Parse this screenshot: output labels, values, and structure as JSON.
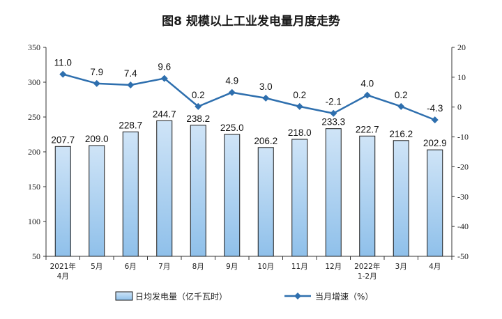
{
  "chart_data": {
    "type": "bar",
    "title": "图8  规模以上工业发电量月度走势",
    "categories": [
      [
        "2021年",
        "4月"
      ],
      [
        "5月"
      ],
      [
        "6月"
      ],
      [
        "7月"
      ],
      [
        "8月"
      ],
      [
        "9月"
      ],
      [
        "10月"
      ],
      [
        "11月"
      ],
      [
        "12月"
      ],
      [
        "2022年",
        "1-2月"
      ],
      [
        "3月"
      ],
      [
        "4月"
      ]
    ],
    "series": [
      {
        "name": "日均发电量（亿千瓦时）",
        "type": "bar",
        "axis": "left",
        "values": [
          207.7,
          209.0,
          228.7,
          244.7,
          238.2,
          225.0,
          206.2,
          218.0,
          233.3,
          222.7,
          216.2,
          202.9
        ],
        "labels": [
          "207.7",
          "209.0",
          "228.7",
          "244.7",
          "238.2",
          "225.0",
          "206.2",
          "218.0",
          "233.3",
          "222.7",
          "216.2",
          "202.9"
        ]
      },
      {
        "name": "当月增速（%）",
        "type": "line",
        "axis": "right",
        "values": [
          11.0,
          7.9,
          7.4,
          9.6,
          0.2,
          4.9,
          3.0,
          0.2,
          -2.1,
          4.0,
          0.2,
          -4.3
        ],
        "labels": [
          "11.0",
          "7.9",
          "7.4",
          "9.6",
          "0.2",
          "4.9",
          "3.0",
          "0.2",
          "-2.1",
          "4.0",
          "0.2",
          "-4.3"
        ]
      }
    ],
    "y_left": {
      "min": 50,
      "max": 350,
      "ticks": [
        50,
        100,
        150,
        200,
        250,
        300,
        350
      ]
    },
    "y_right": {
      "min": -50,
      "max": 20,
      "ticks": [
        -50,
        -40,
        -30,
        -20,
        -10,
        0,
        10,
        20
      ]
    },
    "grid": false,
    "legend_position": "bottom",
    "colors": {
      "bar_fill_top": "#cfe4f7",
      "bar_fill_bottom": "#8fc0ea",
      "bar_stroke": "#1a1a1a",
      "line": "#2e6fae",
      "axis": "#333333"
    }
  }
}
